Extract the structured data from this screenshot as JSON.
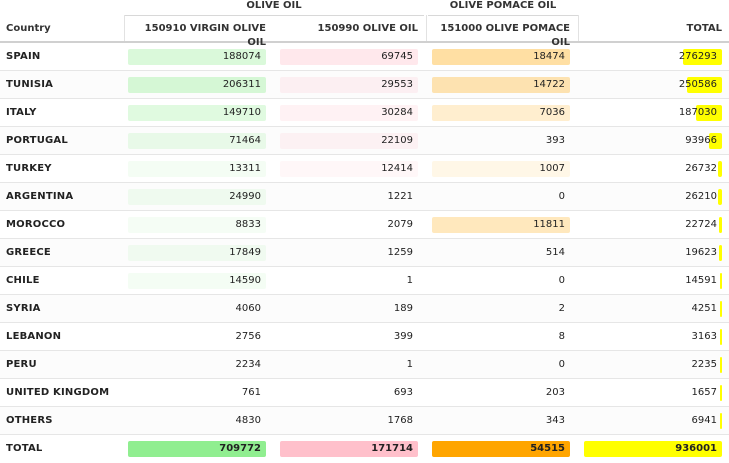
{
  "groups": {
    "olive_oil": "OLIVE OIL",
    "olive_pomace_oil": "OLIVE POMACE OIL"
  },
  "columns": {
    "country": "Country",
    "virgin": "150910 VIRGIN OLIVE OIL",
    "olive": "150990 OLIVE OIL",
    "pomace": "151000 OLIVE POMACE OIL",
    "total": "TOTAL"
  },
  "colors": {
    "virgin": "#90ee90",
    "olive": "#ffc0cb",
    "pomace": "#ffa500",
    "total": "#ffff00"
  },
  "rows": [
    {
      "country": "SPAIN",
      "virgin": "188074",
      "olive": "69745",
      "pomace": "18474",
      "total": "276293"
    },
    {
      "country": "TUNISIA",
      "virgin": "206311",
      "olive": "29553",
      "pomace": "14722",
      "total": "250586"
    },
    {
      "country": "ITALY",
      "virgin": "149710",
      "olive": "30284",
      "pomace": "7036",
      "total": "187030"
    },
    {
      "country": "PORTUGAL",
      "virgin": "71464",
      "olive": "22109",
      "pomace": "393",
      "total": "93966"
    },
    {
      "country": "TURKEY",
      "virgin": "13311",
      "olive": "12414",
      "pomace": "1007",
      "total": "26732"
    },
    {
      "country": "ARGENTINA",
      "virgin": "24990",
      "olive": "1221",
      "pomace": "0",
      "total": "26210"
    },
    {
      "country": "MOROCCO",
      "virgin": "8833",
      "olive": "2079",
      "pomace": "11811",
      "total": "22724"
    },
    {
      "country": "GREECE",
      "virgin": "17849",
      "olive": "1259",
      "pomace": "514",
      "total": "19623"
    },
    {
      "country": "CHILE",
      "virgin": "14590",
      "olive": "1",
      "pomace": "0",
      "total": "14591"
    },
    {
      "country": "SYRIA",
      "virgin": "4060",
      "olive": "189",
      "pomace": "2",
      "total": "4251"
    },
    {
      "country": "LEBANON",
      "virgin": "2756",
      "olive": "399",
      "pomace": "8",
      "total": "3163"
    },
    {
      "country": "PERU",
      "virgin": "2234",
      "olive": "1",
      "pomace": "0",
      "total": "2235"
    },
    {
      "country": "UNITED KINGDOM",
      "virgin": "761",
      "olive": "693",
      "pomace": "203",
      "total": "1657"
    },
    {
      "country": "OTHERS",
      "virgin": "4830",
      "olive": "1768",
      "pomace": "343",
      "total": "6941"
    }
  ],
  "totals": {
    "country": "TOTAL",
    "virgin": "709772",
    "olive": "171714",
    "pomace": "54515",
    "total": "936001"
  }
}
